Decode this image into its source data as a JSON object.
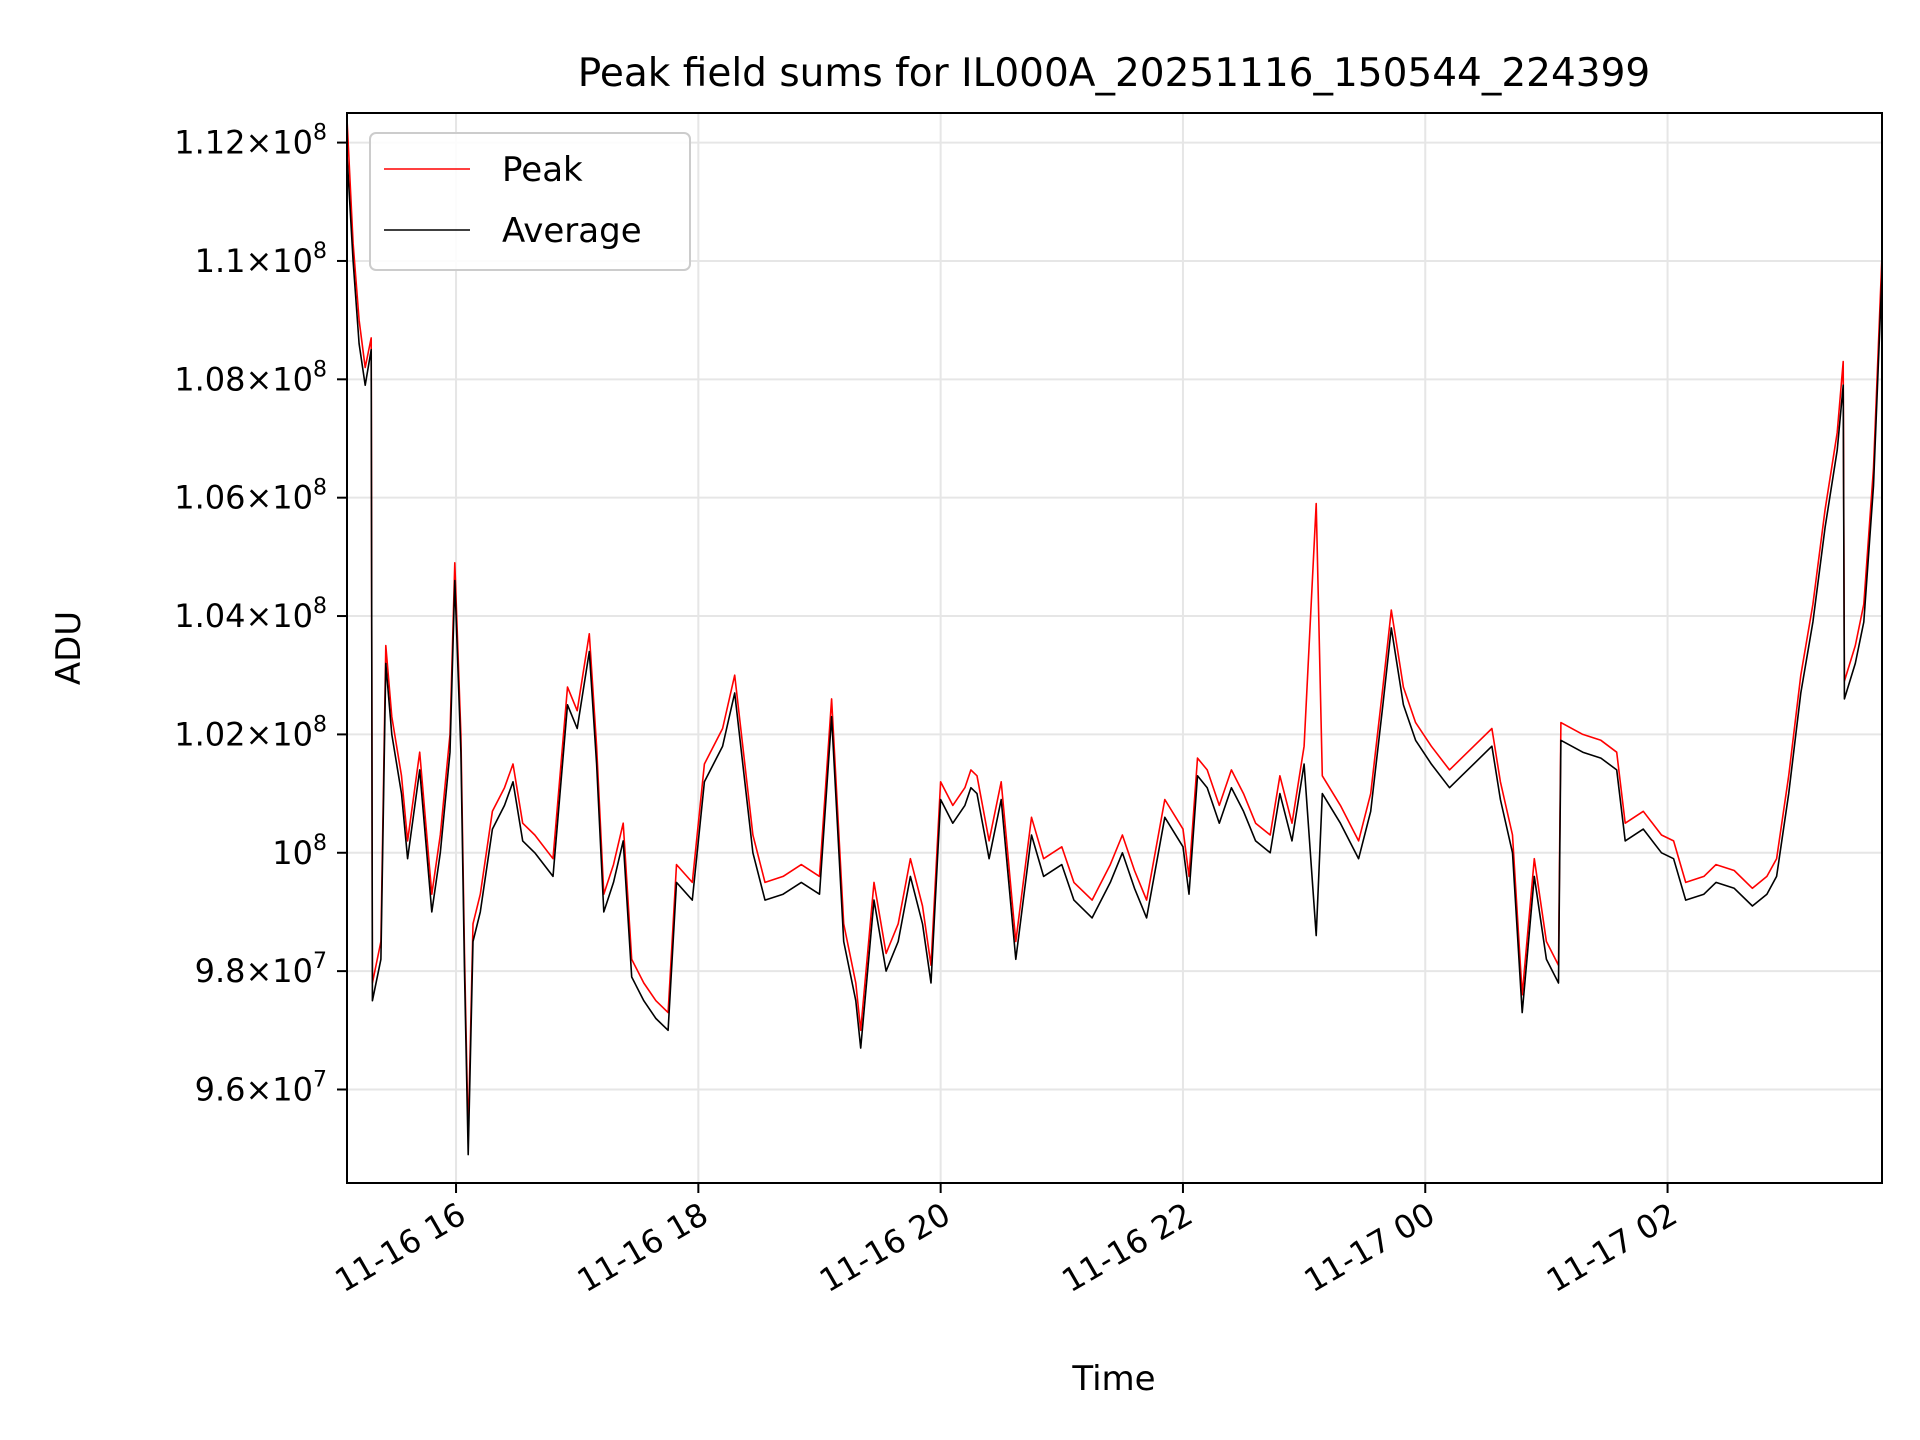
{
  "chart_data": {
    "type": "line",
    "title": "Peak field sums for IL000A_20251116_150544_224399",
    "xlabel": "Time",
    "ylabel": "ADU",
    "grid": true,
    "legend_position": "top-left",
    "x_unit": "hours since 2025-11-16 00:00",
    "xlim": [
      15.1,
      27.77
    ],
    "ylim": [
      94420000,
      112500000
    ],
    "x_ticks": [
      {
        "value": 16,
        "label": "11-16 16"
      },
      {
        "value": 18,
        "label": "11-16 18"
      },
      {
        "value": 20,
        "label": "11-16 20"
      },
      {
        "value": 22,
        "label": "11-16 22"
      },
      {
        "value": 24,
        "label": "11-17 00"
      },
      {
        "value": 26,
        "label": "11-17 02"
      }
    ],
    "y_ticks": [
      {
        "value": 96000000,
        "mantissa": "9.6",
        "exp": "7"
      },
      {
        "value": 98000000,
        "mantissa": "9.8",
        "exp": "7"
      },
      {
        "value": 100000000,
        "mantissa": "",
        "exp": "8"
      },
      {
        "value": 102000000,
        "mantissa": "1.02",
        "exp": "8"
      },
      {
        "value": 104000000,
        "mantissa": "1.04",
        "exp": "8"
      },
      {
        "value": 106000000,
        "mantissa": "1.06",
        "exp": "8"
      },
      {
        "value": 108000000,
        "mantissa": "1.08",
        "exp": "8"
      },
      {
        "value": 110000000,
        "mantissa": "1.1",
        "exp": "8"
      },
      {
        "value": 112000000,
        "mantissa": "1.12",
        "exp": "8"
      }
    ],
    "tick_base": "10",
    "tick_times": "×",
    "series": [
      {
        "name": "Peak",
        "color": "#ff0000",
        "points": [
          [
            15.1,
            112.4
          ],
          [
            15.15,
            110.3
          ],
          [
            15.2,
            109.0
          ],
          [
            15.25,
            108.2
          ],
          [
            15.3,
            108.7
          ],
          [
            15.31,
            97.8
          ],
          [
            15.38,
            98.5
          ],
          [
            15.42,
            103.5
          ],
          [
            15.47,
            102.3
          ],
          [
            15.55,
            101.3
          ],
          [
            15.6,
            100.2
          ],
          [
            15.7,
            101.7
          ],
          [
            15.8,
            99.3
          ],
          [
            15.87,
            100.3
          ],
          [
            15.95,
            102.0
          ],
          [
            15.99,
            104.9
          ],
          [
            16.04,
            102.0
          ],
          [
            16.07,
            98.3
          ],
          [
            16.1,
            95.2
          ],
          [
            16.14,
            98.8
          ],
          [
            16.2,
            99.3
          ],
          [
            16.3,
            100.7
          ],
          [
            16.4,
            101.1
          ],
          [
            16.47,
            101.5
          ],
          [
            16.55,
            100.5
          ],
          [
            16.65,
            100.3
          ],
          [
            16.8,
            99.9
          ],
          [
            16.92,
            102.8
          ],
          [
            17.0,
            102.4
          ],
          [
            17.1,
            103.7
          ],
          [
            17.16,
            101.8
          ],
          [
            17.22,
            99.3
          ],
          [
            17.3,
            99.8
          ],
          [
            17.38,
            100.5
          ],
          [
            17.45,
            98.2
          ],
          [
            17.55,
            97.8
          ],
          [
            17.65,
            97.5
          ],
          [
            17.75,
            97.3
          ],
          [
            17.82,
            99.8
          ],
          [
            17.95,
            99.5
          ],
          [
            18.05,
            101.5
          ],
          [
            18.2,
            102.1
          ],
          [
            18.3,
            103.0
          ],
          [
            18.45,
            100.3
          ],
          [
            18.55,
            99.5
          ],
          [
            18.7,
            99.6
          ],
          [
            18.85,
            99.8
          ],
          [
            19.0,
            99.6
          ],
          [
            19.1,
            102.6
          ],
          [
            19.2,
            98.8
          ],
          [
            19.3,
            97.8
          ],
          [
            19.34,
            97.0
          ],
          [
            19.45,
            99.5
          ],
          [
            19.55,
            98.3
          ],
          [
            19.65,
            98.8
          ],
          [
            19.75,
            99.9
          ],
          [
            19.85,
            99.1
          ],
          [
            19.92,
            98.1
          ],
          [
            20.0,
            101.2
          ],
          [
            20.1,
            100.8
          ],
          [
            20.2,
            101.1
          ],
          [
            20.25,
            101.4
          ],
          [
            20.3,
            101.3
          ],
          [
            20.4,
            100.2
          ],
          [
            20.5,
            101.2
          ],
          [
            20.62,
            98.5
          ],
          [
            20.75,
            100.6
          ],
          [
            20.85,
            99.9
          ],
          [
            21.0,
            100.1
          ],
          [
            21.1,
            99.5
          ],
          [
            21.25,
            99.2
          ],
          [
            21.4,
            99.8
          ],
          [
            21.5,
            100.3
          ],
          [
            21.6,
            99.7
          ],
          [
            21.7,
            99.2
          ],
          [
            21.85,
            100.9
          ],
          [
            22.0,
            100.4
          ],
          [
            22.05,
            99.6
          ],
          [
            22.12,
            101.6
          ],
          [
            22.2,
            101.4
          ],
          [
            22.3,
            100.8
          ],
          [
            22.4,
            101.4
          ],
          [
            22.5,
            101.0
          ],
          [
            22.6,
            100.5
          ],
          [
            22.72,
            100.3
          ],
          [
            22.8,
            101.3
          ],
          [
            22.9,
            100.5
          ],
          [
            23.0,
            101.8
          ],
          [
            23.1,
            105.9
          ],
          [
            23.15,
            101.3
          ],
          [
            23.3,
            100.8
          ],
          [
            23.45,
            100.2
          ],
          [
            23.55,
            101.0
          ],
          [
            23.65,
            102.8
          ],
          [
            23.72,
            104.1
          ],
          [
            23.82,
            102.8
          ],
          [
            23.92,
            102.2
          ],
          [
            24.05,
            101.8
          ],
          [
            24.2,
            101.4
          ],
          [
            24.3,
            101.6
          ],
          [
            24.45,
            101.9
          ],
          [
            24.55,
            102.1
          ],
          [
            24.62,
            101.2
          ],
          [
            24.72,
            100.3
          ],
          [
            24.8,
            97.6
          ],
          [
            24.9,
            99.9
          ],
          [
            25.0,
            98.5
          ],
          [
            25.1,
            98.1
          ],
          [
            25.12,
            102.2
          ],
          [
            25.3,
            102.0
          ],
          [
            25.45,
            101.9
          ],
          [
            25.58,
            101.7
          ],
          [
            25.65,
            100.5
          ],
          [
            25.8,
            100.7
          ],
          [
            25.95,
            100.3
          ],
          [
            26.05,
            100.2
          ],
          [
            26.15,
            99.5
          ],
          [
            26.3,
            99.6
          ],
          [
            26.4,
            99.8
          ],
          [
            26.55,
            99.7
          ],
          [
            26.7,
            99.4
          ],
          [
            26.82,
            99.6
          ],
          [
            26.9,
            99.9
          ],
          [
            27.0,
            101.3
          ],
          [
            27.1,
            103.0
          ],
          [
            27.2,
            104.2
          ],
          [
            27.3,
            105.8
          ],
          [
            27.4,
            107.1
          ],
          [
            27.45,
            108.3
          ],
          [
            27.46,
            102.9
          ],
          [
            27.55,
            103.5
          ],
          [
            27.62,
            104.2
          ],
          [
            27.7,
            106.5
          ],
          [
            27.77,
            110.1
          ]
        ]
      },
      {
        "name": "Average",
        "color": "#000000",
        "points": [
          [
            15.1,
            111.8
          ],
          [
            15.15,
            110.0
          ],
          [
            15.2,
            108.6
          ],
          [
            15.25,
            107.9
          ],
          [
            15.3,
            108.5
          ],
          [
            15.31,
            97.5
          ],
          [
            15.38,
            98.2
          ],
          [
            15.42,
            103.2
          ],
          [
            15.47,
            102.0
          ],
          [
            15.55,
            101.0
          ],
          [
            15.6,
            99.9
          ],
          [
            15.7,
            101.4
          ],
          [
            15.8,
            99.0
          ],
          [
            15.87,
            100.0
          ],
          [
            15.95,
            101.7
          ],
          [
            15.99,
            104.6
          ],
          [
            16.04,
            101.7
          ],
          [
            16.07,
            98.0
          ],
          [
            16.1,
            94.9
          ],
          [
            16.14,
            98.5
          ],
          [
            16.2,
            99.0
          ],
          [
            16.3,
            100.4
          ],
          [
            16.4,
            100.8
          ],
          [
            16.47,
            101.2
          ],
          [
            16.55,
            100.2
          ],
          [
            16.65,
            100.0
          ],
          [
            16.8,
            99.6
          ],
          [
            16.92,
            102.5
          ],
          [
            17.0,
            102.1
          ],
          [
            17.1,
            103.4
          ],
          [
            17.16,
            101.5
          ],
          [
            17.22,
            99.0
          ],
          [
            17.3,
            99.5
          ],
          [
            17.38,
            100.2
          ],
          [
            17.45,
            97.9
          ],
          [
            17.55,
            97.5
          ],
          [
            17.65,
            97.2
          ],
          [
            17.75,
            97.0
          ],
          [
            17.82,
            99.5
          ],
          [
            17.95,
            99.2
          ],
          [
            18.05,
            101.2
          ],
          [
            18.2,
            101.8
          ],
          [
            18.3,
            102.7
          ],
          [
            18.45,
            100.0
          ],
          [
            18.55,
            99.2
          ],
          [
            18.7,
            99.3
          ],
          [
            18.85,
            99.5
          ],
          [
            19.0,
            99.3
          ],
          [
            19.1,
            102.3
          ],
          [
            19.2,
            98.5
          ],
          [
            19.3,
            97.5
          ],
          [
            19.34,
            96.7
          ],
          [
            19.45,
            99.2
          ],
          [
            19.55,
            98.0
          ],
          [
            19.65,
            98.5
          ],
          [
            19.75,
            99.6
          ],
          [
            19.85,
            98.8
          ],
          [
            19.92,
            97.8
          ],
          [
            20.0,
            100.9
          ],
          [
            20.1,
            100.5
          ],
          [
            20.2,
            100.8
          ],
          [
            20.25,
            101.1
          ],
          [
            20.3,
            101.0
          ],
          [
            20.4,
            99.9
          ],
          [
            20.5,
            100.9
          ],
          [
            20.62,
            98.2
          ],
          [
            20.75,
            100.3
          ],
          [
            20.85,
            99.6
          ],
          [
            21.0,
            99.8
          ],
          [
            21.1,
            99.2
          ],
          [
            21.25,
            98.9
          ],
          [
            21.4,
            99.5
          ],
          [
            21.5,
            100.0
          ],
          [
            21.6,
            99.4
          ],
          [
            21.7,
            98.9
          ],
          [
            21.85,
            100.6
          ],
          [
            22.0,
            100.1
          ],
          [
            22.05,
            99.3
          ],
          [
            22.12,
            101.3
          ],
          [
            22.2,
            101.1
          ],
          [
            22.3,
            100.5
          ],
          [
            22.4,
            101.1
          ],
          [
            22.5,
            100.7
          ],
          [
            22.6,
            100.2
          ],
          [
            22.72,
            100.0
          ],
          [
            22.8,
            101.0
          ],
          [
            22.9,
            100.2
          ],
          [
            23.0,
            101.5
          ],
          [
            23.1,
            98.6
          ],
          [
            23.15,
            101.0
          ],
          [
            23.3,
            100.5
          ],
          [
            23.45,
            99.9
          ],
          [
            23.55,
            100.7
          ],
          [
            23.65,
            102.5
          ],
          [
            23.72,
            103.8
          ],
          [
            23.82,
            102.5
          ],
          [
            23.92,
            101.9
          ],
          [
            24.05,
            101.5
          ],
          [
            24.2,
            101.1
          ],
          [
            24.3,
            101.3
          ],
          [
            24.45,
            101.6
          ],
          [
            24.55,
            101.8
          ],
          [
            24.62,
            100.9
          ],
          [
            24.72,
            100.0
          ],
          [
            24.8,
            97.3
          ],
          [
            24.9,
            99.6
          ],
          [
            25.0,
            98.2
          ],
          [
            25.1,
            97.8
          ],
          [
            25.12,
            101.9
          ],
          [
            25.3,
            101.7
          ],
          [
            25.45,
            101.6
          ],
          [
            25.58,
            101.4
          ],
          [
            25.65,
            100.2
          ],
          [
            25.8,
            100.4
          ],
          [
            25.95,
            100.0
          ],
          [
            26.05,
            99.9
          ],
          [
            26.15,
            99.2
          ],
          [
            26.3,
            99.3
          ],
          [
            26.4,
            99.5
          ],
          [
            26.55,
            99.4
          ],
          [
            26.7,
            99.1
          ],
          [
            26.82,
            99.3
          ],
          [
            26.9,
            99.6
          ],
          [
            27.0,
            101.0
          ],
          [
            27.1,
            102.7
          ],
          [
            27.2,
            103.9
          ],
          [
            27.3,
            105.5
          ],
          [
            27.4,
            106.8
          ],
          [
            27.45,
            107.9
          ],
          [
            27.46,
            102.6
          ],
          [
            27.55,
            103.2
          ],
          [
            27.62,
            103.9
          ],
          [
            27.7,
            106.2
          ],
          [
            27.77,
            109.8
          ]
        ]
      }
    ]
  }
}
